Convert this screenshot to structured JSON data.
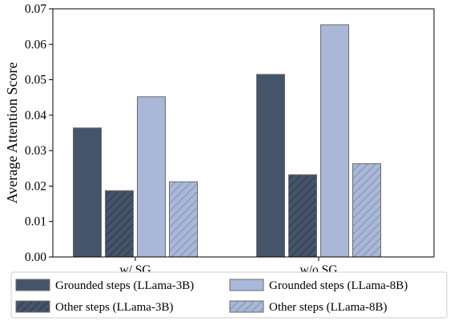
{
  "chart_data": {
    "type": "bar",
    "title": "",
    "xlabel": "",
    "ylabel": "Average Attention Score",
    "ylim": [
      0,
      0.07
    ],
    "yticks": [
      "0.00",
      "0.01",
      "0.02",
      "0.03",
      "0.04",
      "0.05",
      "0.06",
      "0.07"
    ],
    "categories": [
      "w/ SG",
      "w/o SG"
    ],
    "series": [
      {
        "name": "Grounded steps (LLama-3B)",
        "values": [
          0.0364,
          0.0515
        ],
        "color": "#44546a",
        "hatch": false
      },
      {
        "name": "Other steps (LLama-3B)",
        "values": [
          0.0187,
          0.0232
        ],
        "color": "#44546a",
        "hatch": true
      },
      {
        "name": "Grounded steps (LLama-8B)",
        "values": [
          0.0452,
          0.0655
        ],
        "color": "#a9b8d8",
        "hatch": false
      },
      {
        "name": "Other steps (LLama-8B)",
        "values": [
          0.0212,
          0.0263
        ],
        "color": "#a9b8d8",
        "hatch": true
      }
    ],
    "grid": false,
    "legend_position": "bottom"
  }
}
